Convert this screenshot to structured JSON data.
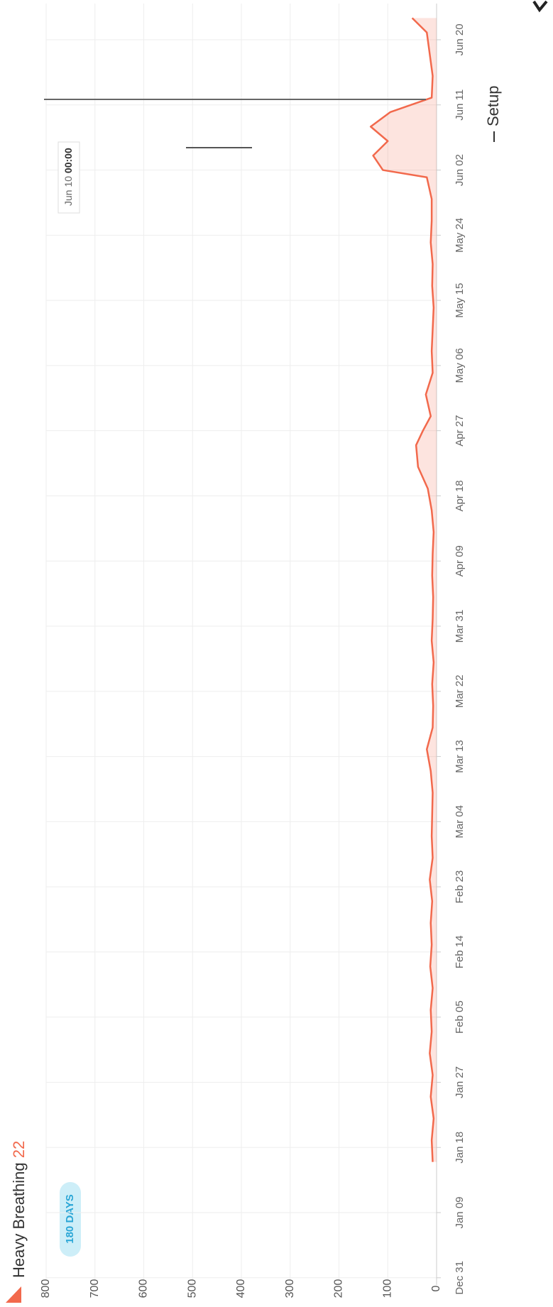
{
  "chart_data": {
    "type": "area",
    "title": "Heavy Breathing",
    "count": 22,
    "range_badge": "180 DAYS",
    "setup_label": "Setup",
    "tooltip_date": "Jun 10",
    "tooltip_time": "00:00",
    "x": [
      16,
      19,
      22,
      25,
      28,
      31,
      34,
      37,
      40,
      43,
      46,
      49,
      52,
      55,
      58,
      61,
      64,
      67,
      70,
      73,
      76,
      79,
      82,
      85,
      88,
      91,
      94,
      97,
      100,
      103,
      106,
      109,
      112,
      115,
      117,
      119,
      122,
      125,
      128,
      131,
      134,
      137,
      140,
      143,
      146,
      149,
      152,
      153,
      155,
      157,
      159,
      161,
      163,
      166,
      169,
      172,
      174
    ],
    "values": [
      8,
      10,
      6,
      12,
      8,
      14,
      10,
      12,
      8,
      13,
      10,
      12,
      9,
      14,
      8,
      10,
      9,
      8,
      12,
      20,
      8,
      7,
      9,
      6,
      10,
      8,
      7,
      9,
      8,
      6,
      10,
      18,
      38,
      42,
      28,
      12,
      22,
      8,
      10,
      8,
      6,
      9,
      8,
      12,
      10,
      10,
      20,
      110,
      130,
      100,
      135,
      95,
      10,
      8,
      14,
      20,
      50
    ],
    "color": "#f2694c",
    "xlim": [
      -1,
      176
    ],
    "xticks": [
      {
        "value": 0,
        "label": "Dec 31"
      },
      {
        "value": 9,
        "label": "Jan 09"
      },
      {
        "value": 18,
        "label": "Jan 18"
      },
      {
        "value": 27,
        "label": "Jan 27"
      },
      {
        "value": 36,
        "label": "Feb 05"
      },
      {
        "value": 45,
        "label": "Feb 14"
      },
      {
        "value": 54,
        "label": "Feb 23"
      },
      {
        "value": 63,
        "label": "Mar 04"
      },
      {
        "value": 72,
        "label": "Mar 13"
      },
      {
        "value": 81,
        "label": "Mar 22"
      },
      {
        "value": 90,
        "label": "Mar 31"
      },
      {
        "value": 99,
        "label": "Apr 09"
      },
      {
        "value": 108,
        "label": "Apr 18"
      },
      {
        "value": 117,
        "label": "Apr 27"
      },
      {
        "value": 126,
        "label": "May 06"
      },
      {
        "value": 135,
        "label": "May 15"
      },
      {
        "value": 144,
        "label": "May 24"
      },
      {
        "value": 153,
        "label": "Jun 02"
      },
      {
        "value": 162,
        "label": "Jun 11"
      },
      {
        "value": 171,
        "label": "Jun 20"
      }
    ],
    "ylim": [
      0,
      800
    ],
    "yticks": [
      0,
      100,
      200,
      300,
      400,
      500,
      600,
      700,
      800
    ],
    "grid": true
  }
}
